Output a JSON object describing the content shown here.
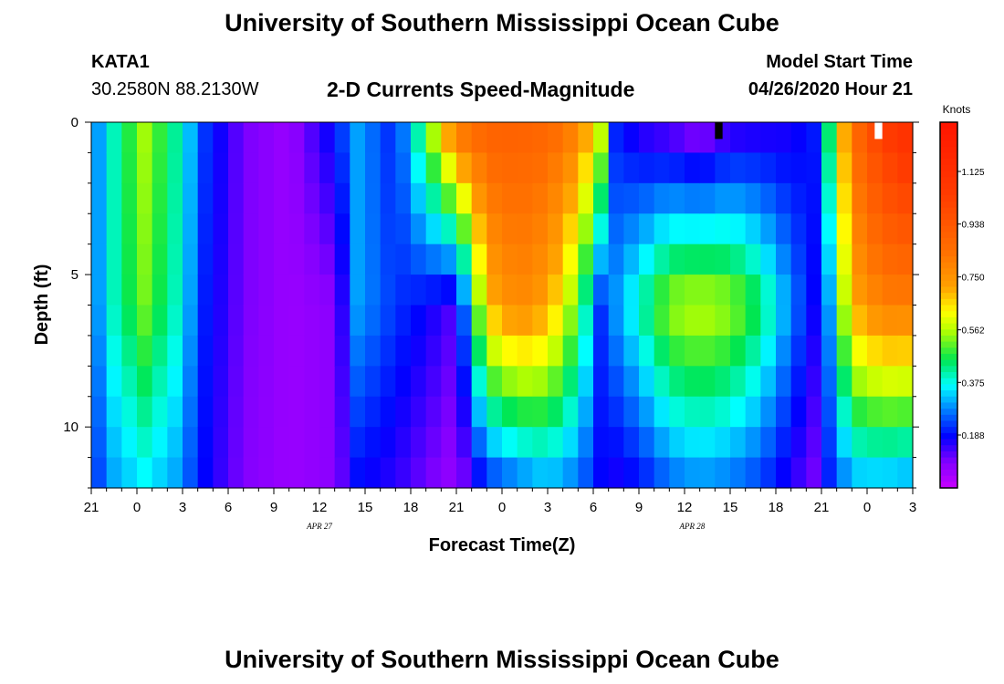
{
  "header": {
    "title": "University of Southern Mississippi Ocean Cube",
    "station": "KATA1",
    "coords": "30.2580N 88.2130W",
    "subtitle": "2-D Currents Speed-Magnitude",
    "model_start_label": "Model Start Time",
    "model_start_value": "04/26/2020 Hour 21"
  },
  "footer": {
    "title": "University of Southern Mississippi Ocean Cube"
  },
  "chart_data": {
    "type": "heatmap",
    "title": "2-D Currents Speed-Magnitude",
    "xlabel": "Forecast Time(Z)",
    "ylabel": "Depth (ft)",
    "xlim_hours": [
      0,
      54
    ],
    "ylim_ft": [
      0,
      12
    ],
    "x_ticks": [
      {
        "h": 0,
        "label": "21"
      },
      {
        "h": 3,
        "label": "0"
      },
      {
        "h": 6,
        "label": "3"
      },
      {
        "h": 9,
        "label": "6"
      },
      {
        "h": 12,
        "label": "9"
      },
      {
        "h": 15,
        "label": "12"
      },
      {
        "h": 18,
        "label": "15"
      },
      {
        "h": 21,
        "label": "18"
      },
      {
        "h": 24,
        "label": "21"
      },
      {
        "h": 27,
        "label": "0"
      },
      {
        "h": 30,
        "label": "3"
      },
      {
        "h": 33,
        "label": "6"
      },
      {
        "h": 36,
        "label": "9"
      },
      {
        "h": 39,
        "label": "12"
      },
      {
        "h": 42,
        "label": "15"
      },
      {
        "h": 45,
        "label": "18"
      },
      {
        "h": 48,
        "label": "21"
      },
      {
        "h": 51,
        "label": "0"
      },
      {
        "h": 54,
        "label": "3"
      }
    ],
    "date_labels": [
      {
        "h": 15,
        "label": "APR 27"
      },
      {
        "h": 39.5,
        "label": "APR 28"
      }
    ],
    "y_ticks": [
      {
        "ft": 0,
        "label": "0"
      },
      {
        "ft": 5,
        "label": "5"
      },
      {
        "ft": 10,
        "label": "10"
      }
    ],
    "colorbar": {
      "units": "Knots",
      "min": 0.0,
      "max": 1.3,
      "ticks": [
        "0.188",
        "0.375",
        "0.562",
        "0.750",
        "0.938",
        "1.125"
      ],
      "tick_values": [
        0.188,
        0.375,
        0.562,
        0.75,
        0.938,
        1.125
      ]
    },
    "depth_levels_ft": [
      0,
      1,
      2,
      3,
      4,
      5,
      6,
      7,
      8,
      9,
      10,
      11,
      12
    ],
    "time_keyframes_h": [
      0,
      1.5,
      3.5,
      5.5,
      7.5,
      10,
      13,
      16,
      17.5,
      20,
      22,
      24,
      26,
      28,
      30,
      32,
      33.5,
      34.5,
      36,
      38,
      40,
      42,
      44,
      46,
      47.5,
      48.5,
      50,
      52,
      54
    ],
    "speed_knots_top": [
      0.25,
      0.4,
      0.55,
      0.42,
      0.22,
      0.1,
      0.06,
      0.2,
      0.3,
      0.2,
      0.5,
      0.85,
      0.9,
      0.9,
      0.88,
      0.8,
      0.6,
      0.2,
      0.14,
      0.1,
      0.05,
      0.12,
      0.14,
      0.16,
      0.2,
      0.45,
      0.85,
      1.05,
      1.15
    ],
    "speed_knots_mid": [
      0.25,
      0.4,
      0.52,
      0.4,
      0.2,
      0.1,
      0.06,
      0.08,
      0.3,
      0.22,
      0.18,
      0.12,
      0.68,
      0.78,
      0.72,
      0.5,
      0.22,
      0.3,
      0.4,
      0.55,
      0.58,
      0.55,
      0.45,
      0.28,
      0.18,
      0.3,
      0.7,
      0.8,
      0.8
    ],
    "speed_knots_bottom": [
      0.2,
      0.3,
      0.35,
      0.3,
      0.18,
      0.09,
      0.06,
      0.08,
      0.18,
      0.15,
      0.1,
      0.06,
      0.2,
      0.25,
      0.3,
      0.26,
      0.18,
      0.16,
      0.18,
      0.25,
      0.28,
      0.26,
      0.22,
      0.15,
      0.1,
      0.2,
      0.3,
      0.3,
      0.28
    ],
    "missing_cells": [
      {
        "h": 41,
        "depth_ft": 0,
        "color": "#000000"
      },
      {
        "h": 51.5,
        "depth_ft": 0,
        "color": "#ffffff"
      }
    ]
  }
}
